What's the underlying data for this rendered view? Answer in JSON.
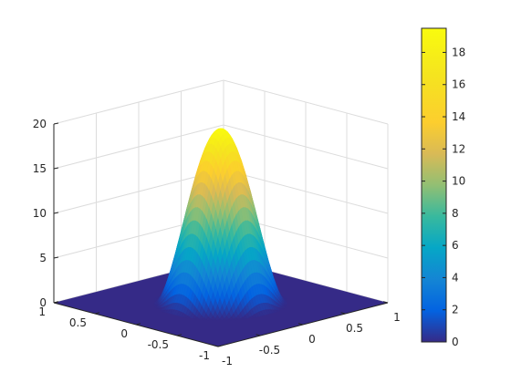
{
  "chart_data": {
    "type": "surface",
    "title": "",
    "xlabel": "",
    "ylabel": "",
    "zlabel": "",
    "xlim": [
      -1,
      1
    ],
    "ylim": [
      -1,
      1
    ],
    "zlim": [
      0,
      20
    ],
    "x_ticks": [
      "-1",
      "-0.5",
      "0",
      "0.5",
      "1"
    ],
    "y_ticks": [
      "-1",
      "-0.5",
      "0",
      "0.5",
      "1"
    ],
    "z_ticks": [
      "0",
      "5",
      "10",
      "15",
      "20"
    ],
    "grid": true,
    "surface": {
      "description_values": "peak height near z=19.5 at x=0,y=0, falling to 0 near |x|,|y|>=0.55; flat plane z=0 elsewhere",
      "peak": 19.5,
      "support_radius": 0.55
    },
    "colorbar": {
      "position": "right",
      "min": 0,
      "max": 19.5,
      "ticks": [
        "0",
        "2",
        "4",
        "6",
        "8",
        "10",
        "12",
        "14",
        "16",
        "18"
      ],
      "colormap": "parula"
    }
  }
}
